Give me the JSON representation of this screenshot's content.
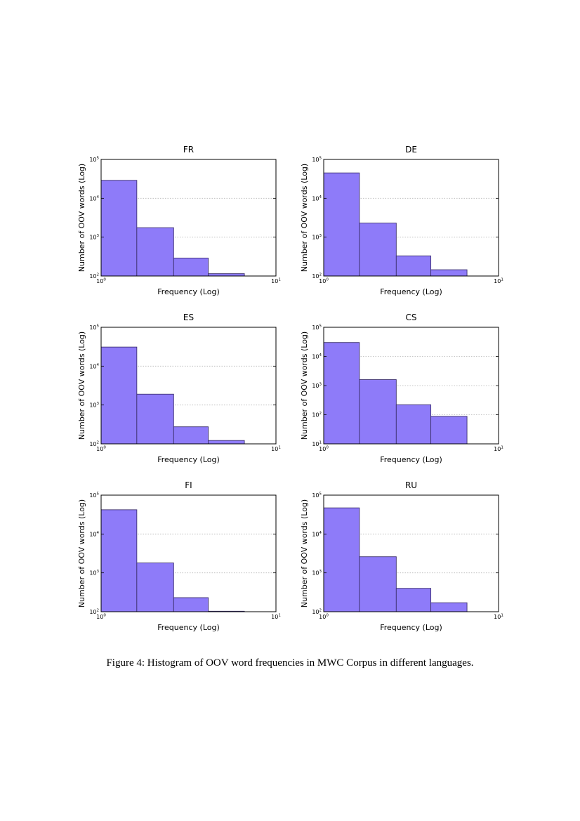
{
  "caption": "Figure 4: Histogram of OOV word frequencies in MWC Corpus in different languages.",
  "chart_data": [
    {
      "type": "bar",
      "title": "FR",
      "xlabel": "Frequency (Log)",
      "ylabel": "Number of OOV words (Log)",
      "xscale": "log",
      "yscale": "log",
      "xlim": [
        1,
        10
      ],
      "ylim": [
        100,
        100000
      ],
      "xticks": [
        {
          "base": "10",
          "exp": "0"
        },
        {
          "base": "10",
          "exp": "1"
        }
      ],
      "yticks": [
        {
          "base": "10",
          "exp": "2"
        },
        {
          "base": "10",
          "exp": "3"
        },
        {
          "base": "10",
          "exp": "4"
        },
        {
          "base": "10",
          "exp": "5"
        }
      ],
      "bin_edges": [
        1,
        1.6,
        2.6,
        4.1,
        6.6
      ],
      "values": [
        29000,
        1750,
        290,
        115
      ],
      "grid": "horizontal-dotted",
      "bar_color": "#8e7bf9"
    },
    {
      "type": "bar",
      "title": "DE",
      "xlabel": "Frequency (Log)",
      "ylabel": "Number of OOV words (Log)",
      "xscale": "log",
      "yscale": "log",
      "xlim": [
        1,
        10
      ],
      "ylim": [
        100,
        100000
      ],
      "xticks": [
        {
          "base": "10",
          "exp": "0"
        },
        {
          "base": "10",
          "exp": "1"
        }
      ],
      "yticks": [
        {
          "base": "10",
          "exp": "2"
        },
        {
          "base": "10",
          "exp": "3"
        },
        {
          "base": "10",
          "exp": "4"
        },
        {
          "base": "10",
          "exp": "5"
        }
      ],
      "bin_edges": [
        1,
        1.6,
        2.6,
        4.1,
        6.6
      ],
      "values": [
        45000,
        2300,
        330,
        145
      ],
      "grid": "horizontal-dotted",
      "bar_color": "#8e7bf9"
    },
    {
      "type": "bar",
      "title": "ES",
      "xlabel": "Frequency (Log)",
      "ylabel": "Number of OOV words (Log)",
      "xscale": "log",
      "yscale": "log",
      "xlim": [
        1,
        10
      ],
      "ylim": [
        100,
        100000
      ],
      "xticks": [
        {
          "base": "10",
          "exp": "0"
        },
        {
          "base": "10",
          "exp": "1"
        }
      ],
      "yticks": [
        {
          "base": "10",
          "exp": "2"
        },
        {
          "base": "10",
          "exp": "3"
        },
        {
          "base": "10",
          "exp": "4"
        },
        {
          "base": "10",
          "exp": "5"
        }
      ],
      "bin_edges": [
        1,
        1.6,
        2.6,
        4.1,
        6.6
      ],
      "values": [
        31000,
        1900,
        275,
        122
      ],
      "grid": "horizontal-dotted",
      "bar_color": "#8e7bf9"
    },
    {
      "type": "bar",
      "title": "CS",
      "xlabel": "Frequency (Log)",
      "ylabel": "Number of OOV words (Log)",
      "xscale": "log",
      "yscale": "log",
      "xlim": [
        1,
        10
      ],
      "ylim": [
        10,
        100000
      ],
      "xticks": [
        {
          "base": "10",
          "exp": "0"
        },
        {
          "base": "10",
          "exp": "1"
        }
      ],
      "yticks": [
        {
          "base": "10",
          "exp": "1"
        },
        {
          "base": "10",
          "exp": "2"
        },
        {
          "base": "10",
          "exp": "3"
        },
        {
          "base": "10",
          "exp": "4"
        },
        {
          "base": "10",
          "exp": "5"
        }
      ],
      "bin_edges": [
        1,
        1.6,
        2.6,
        4.1,
        6.6
      ],
      "values": [
        30000,
        1600,
        220,
        88
      ],
      "grid": "horizontal-dotted",
      "bar_color": "#8e7bf9"
    },
    {
      "type": "bar",
      "title": "FI",
      "xlabel": "Frequency (Log)",
      "ylabel": "Number of OOV words (Log)",
      "xscale": "log",
      "yscale": "log",
      "xlim": [
        1,
        10
      ],
      "ylim": [
        100,
        100000
      ],
      "xticks": [
        {
          "base": "10",
          "exp": "0"
        },
        {
          "base": "10",
          "exp": "1"
        }
      ],
      "yticks": [
        {
          "base": "10",
          "exp": "2"
        },
        {
          "base": "10",
          "exp": "3"
        },
        {
          "base": "10",
          "exp": "4"
        },
        {
          "base": "10",
          "exp": "5"
        }
      ],
      "bin_edges": [
        1,
        1.6,
        2.6,
        4.1,
        6.6
      ],
      "values": [
        42000,
        1800,
        230,
        103
      ],
      "grid": "horizontal-dotted",
      "bar_color": "#8e7bf9"
    },
    {
      "type": "bar",
      "title": "RU",
      "xlabel": "Frequency (Log)",
      "ylabel": "Number of OOV words (Log)",
      "xscale": "log",
      "yscale": "log",
      "xlim": [
        1,
        10
      ],
      "ylim": [
        100,
        100000
      ],
      "xticks": [
        {
          "base": "10",
          "exp": "0"
        },
        {
          "base": "10",
          "exp": "1"
        }
      ],
      "yticks": [
        {
          "base": "10",
          "exp": "2"
        },
        {
          "base": "10",
          "exp": "3"
        },
        {
          "base": "10",
          "exp": "4"
        },
        {
          "base": "10",
          "exp": "5"
        }
      ],
      "bin_edges": [
        1,
        1.6,
        2.6,
        4.1,
        6.6
      ],
      "values": [
        47000,
        2600,
        400,
        170
      ],
      "grid": "horizontal-dotted",
      "bar_color": "#8e7bf9"
    }
  ]
}
